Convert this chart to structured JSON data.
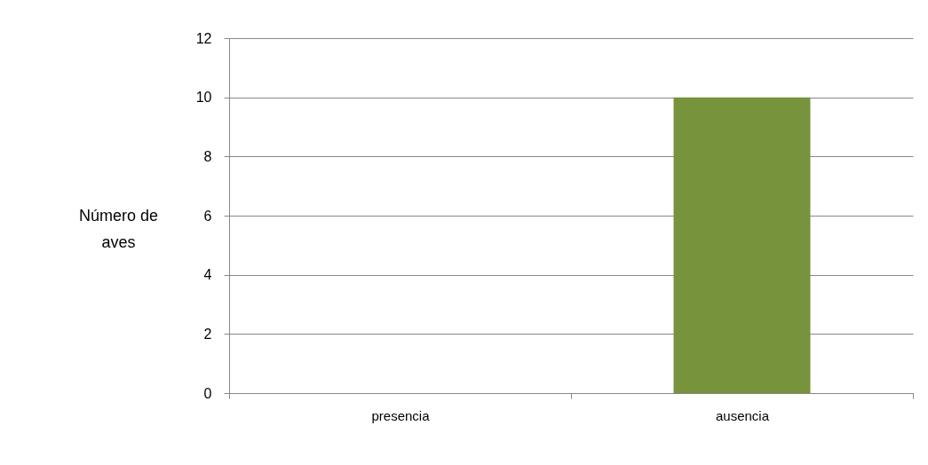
{
  "chart_data": {
    "type": "bar",
    "ylabel": "Número de aves",
    "categories": [
      "presencia",
      "ausencia"
    ],
    "values": [
      0,
      10
    ],
    "color": "#77933c",
    "ylim": [
      0,
      12
    ],
    "yticks": [
      0,
      2,
      4,
      6,
      8,
      10,
      12
    ],
    "grid": "y"
  }
}
